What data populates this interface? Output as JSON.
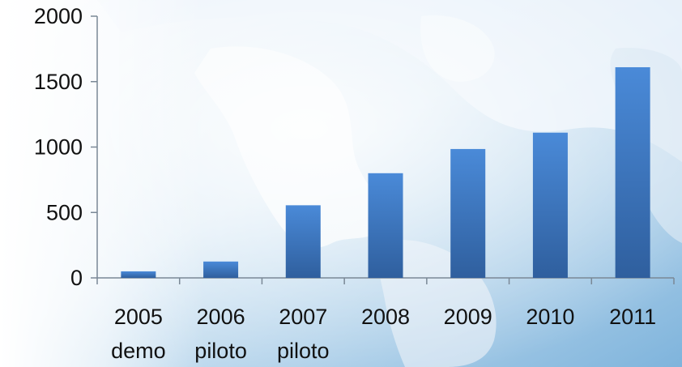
{
  "chart_data": {
    "type": "bar",
    "categories": [
      "2005",
      "2006",
      "2007",
      "2008",
      "2009",
      "2010",
      "2011"
    ],
    "category_sublabels": [
      "demo",
      "piloto",
      "piloto",
      "",
      "",
      "",
      ""
    ],
    "values": [
      50,
      125,
      555,
      800,
      985,
      1110,
      1610
    ],
    "ylim": [
      0,
      2000
    ],
    "yticks": [
      "0",
      "500",
      "1000",
      "1500",
      "2000"
    ],
    "title": "",
    "xlabel": "",
    "ylabel": "",
    "grid": false,
    "legend": "none",
    "bar_color_top": "#4a8ad8",
    "bar_color_bottom": "#2f5f9e",
    "axis_color": "#7a8896",
    "background": "world-map"
  }
}
